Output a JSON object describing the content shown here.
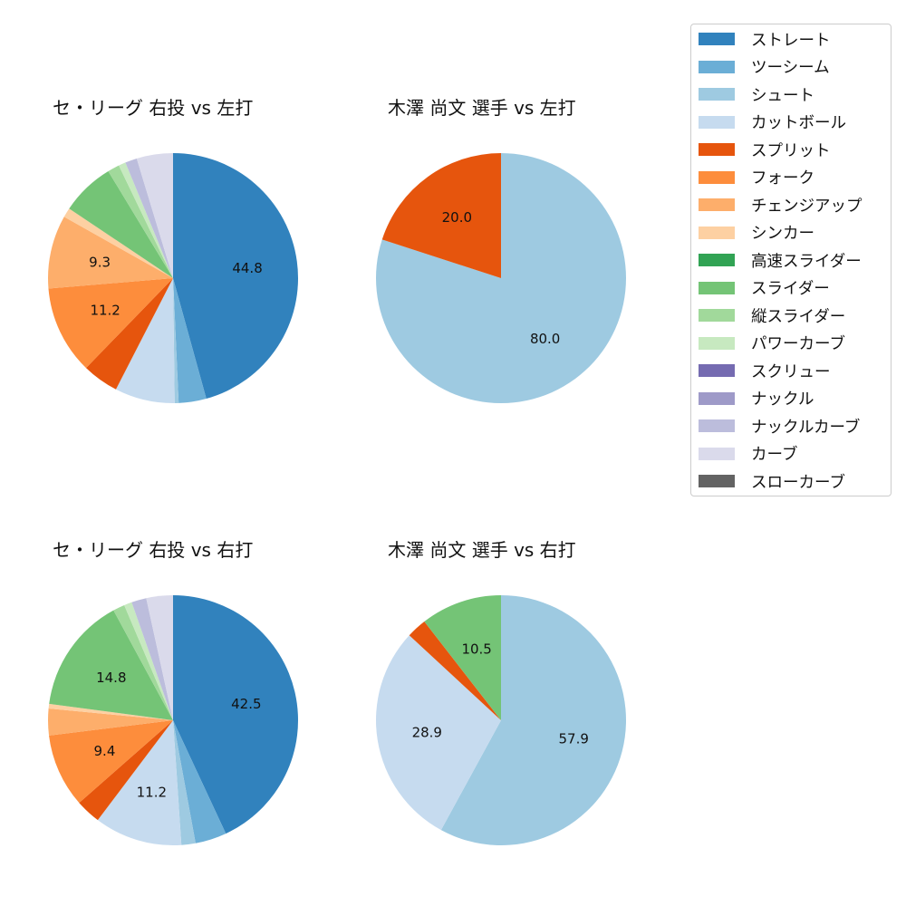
{
  "chart_data": [
    {
      "type": "pie",
      "title": "セ・リーグ 右投 vs 左打",
      "slices": [
        {
          "label": "ストレート",
          "value": 44.8,
          "color": "#3182bd",
          "data_label": "44.8"
        },
        {
          "label": "ツーシーム",
          "value": 3.5,
          "color": "#6baed6"
        },
        {
          "label": "シュート",
          "value": 0.5,
          "color": "#9ecae1"
        },
        {
          "label": "カットボール",
          "value": 7.6,
          "color": "#c6dbef"
        },
        {
          "label": "スプリット",
          "value": 4.6,
          "color": "#e6550d"
        },
        {
          "label": "フォーク",
          "value": 11.2,
          "color": "#fd8d3c",
          "data_label": "11.2"
        },
        {
          "label": "チェンジアップ",
          "value": 9.3,
          "color": "#fdae6b",
          "data_label": "9.3"
        },
        {
          "label": "シンカー",
          "value": 1.2,
          "color": "#fdd0a2"
        },
        {
          "label": "スライダー",
          "value": 6.8,
          "color": "#74c476"
        },
        {
          "label": "縦スライダー",
          "value": 1.5,
          "color": "#a1d99b"
        },
        {
          "label": "パワーカーブ",
          "value": 0.9,
          "color": "#c7e9c0"
        },
        {
          "label": "ナックルカーブ",
          "value": 1.5,
          "color": "#bcbddc"
        },
        {
          "label": "カーブ",
          "value": 4.6,
          "color": "#dadaeb"
        }
      ]
    },
    {
      "type": "pie",
      "title": "木澤 尚文 選手 vs 左打",
      "slices": [
        {
          "label": "シュート",
          "value": 80.0,
          "color": "#9ecae1",
          "data_label": "80.0"
        },
        {
          "label": "スプリット",
          "value": 20.0,
          "color": "#e6550d",
          "data_label": "20.0"
        }
      ]
    },
    {
      "type": "pie",
      "title": "セ・リーグ 右投 vs 右打",
      "slices": [
        {
          "label": "ストレート",
          "value": 42.5,
          "color": "#3182bd",
          "data_label": "42.5"
        },
        {
          "label": "ツーシーム",
          "value": 4.0,
          "color": "#6baed6"
        },
        {
          "label": "シュート",
          "value": 1.8,
          "color": "#9ecae1"
        },
        {
          "label": "カットボール",
          "value": 11.2,
          "color": "#c6dbef",
          "data_label": "11.2"
        },
        {
          "label": "スプリット",
          "value": 3.2,
          "color": "#e6550d"
        },
        {
          "label": "フォーク",
          "value": 9.4,
          "color": "#fd8d3c",
          "data_label": "9.4"
        },
        {
          "label": "チェンジアップ",
          "value": 3.4,
          "color": "#fdae6b"
        },
        {
          "label": "シンカー",
          "value": 0.6,
          "color": "#fdd0a2"
        },
        {
          "label": "スライダー",
          "value": 14.8,
          "color": "#74c476",
          "data_label": "14.8"
        },
        {
          "label": "縦スライダー",
          "value": 1.5,
          "color": "#a1d99b"
        },
        {
          "label": "パワーカーブ",
          "value": 1.0,
          "color": "#c7e9c0"
        },
        {
          "label": "ナックルカーブ",
          "value": 1.9,
          "color": "#bcbddc"
        },
        {
          "label": "カーブ",
          "value": 3.4,
          "color": "#dadaeb"
        }
      ]
    },
    {
      "type": "pie",
      "title": "木澤 尚文 選手 vs 右打",
      "slices": [
        {
          "label": "シュート",
          "value": 57.9,
          "color": "#9ecae1",
          "data_label": "57.9"
        },
        {
          "label": "カットボール",
          "value": 28.9,
          "color": "#c6dbef",
          "data_label": "28.9"
        },
        {
          "label": "スプリット",
          "value": 2.6,
          "color": "#e6550d"
        },
        {
          "label": "スライダー",
          "value": 10.5,
          "color": "#74c476",
          "data_label": "10.5"
        }
      ]
    }
  ],
  "legend": {
    "position": "top-right",
    "items": [
      {
        "label": "ストレート",
        "color": "#3182bd"
      },
      {
        "label": "ツーシーム",
        "color": "#6baed6"
      },
      {
        "label": "シュート",
        "color": "#9ecae1"
      },
      {
        "label": "カットボール",
        "color": "#c6dbef"
      },
      {
        "label": "スプリット",
        "color": "#e6550d"
      },
      {
        "label": "フォーク",
        "color": "#fd8d3c"
      },
      {
        "label": "チェンジアップ",
        "color": "#fdae6b"
      },
      {
        "label": "シンカー",
        "color": "#fdd0a2"
      },
      {
        "label": "高速スライダー",
        "color": "#31a354"
      },
      {
        "label": "スライダー",
        "color": "#74c476"
      },
      {
        "label": "縦スライダー",
        "color": "#a1d99b"
      },
      {
        "label": "パワーカーブ",
        "color": "#c7e9c0"
      },
      {
        "label": "スクリュー",
        "color": "#756bb1"
      },
      {
        "label": "ナックル",
        "color": "#9e9ac8"
      },
      {
        "label": "ナックルカーブ",
        "color": "#bcbddc"
      },
      {
        "label": "カーブ",
        "color": "#dadaeb"
      },
      {
        "label": "スローカーブ",
        "color": "#636363"
      }
    ]
  }
}
